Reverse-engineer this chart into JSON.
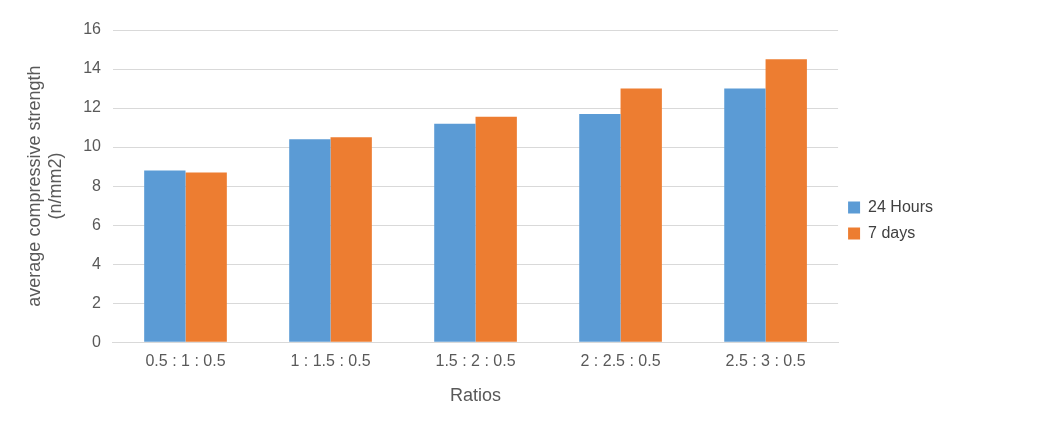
{
  "chart_data": {
    "type": "bar",
    "xlabel": "Ratios",
    "ylabel": "average compressive strength (n/mm2)",
    "categories": [
      "0.5 : 1 : 0.5",
      "1 : 1.5 : 0.5",
      "1.5 : 2 : 0.5",
      "2 : 2.5 : 0.5",
      "2.5 : 3 : 0.5"
    ],
    "series": [
      {
        "name": "24 Hours",
        "color": "#5b9bd5",
        "values": [
          8.8,
          10.4,
          11.2,
          11.7,
          13.0
        ]
      },
      {
        "name": "7 days",
        "color": "#ed7d31",
        "values": [
          8.7,
          10.5,
          11.55,
          13.0,
          14.5
        ]
      }
    ],
    "ylim": [
      0,
      16
    ],
    "yticks": [
      0,
      2,
      4,
      6,
      8,
      10,
      12,
      14,
      16
    ],
    "grid": "y",
    "legend": "right"
  }
}
